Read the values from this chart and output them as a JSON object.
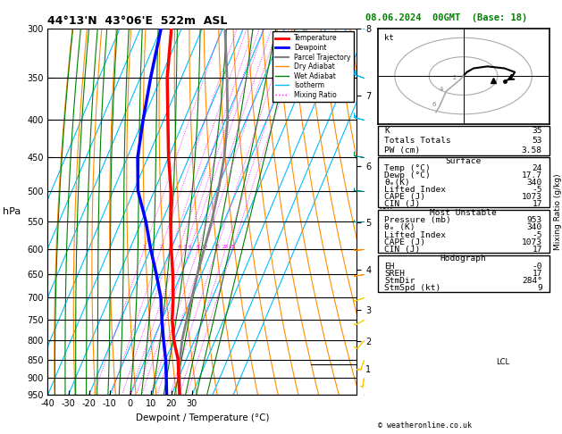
{
  "title_left": "44°13'N  43°06'E  522m  ASL",
  "title_right": "08.06.2024  00GMT  (Base: 18)",
  "xlabel": "Dewpoint / Temperature (°C)",
  "ylabel_left": "hPa",
  "pressure_ticks": [
    300,
    350,
    400,
    450,
    500,
    550,
    600,
    650,
    700,
    750,
    800,
    850,
    900,
    950
  ],
  "temp_ticks": [
    -40,
    -30,
    -20,
    -10,
    0,
    10,
    20,
    30
  ],
  "km_pressures": [
    870,
    795,
    715,
    625,
    535,
    443,
    350,
    280
  ],
  "km_labels": [
    "1",
    "2",
    "3",
    "4",
    "5",
    "6",
    "7",
    "8"
  ],
  "lcl_pressure": 858,
  "temperature_profile_p": [
    950,
    900,
    850,
    800,
    750,
    700,
    650,
    600,
    550,
    500,
    450,
    400,
    350,
    300
  ],
  "temperature_profile_t": [
    24,
    20,
    16,
    10,
    5,
    1,
    -4,
    -10,
    -16,
    -22,
    -30,
    -38,
    -47,
    -55
  ],
  "dewpoint_profile_p": [
    950,
    900,
    850,
    800,
    750,
    700,
    650,
    600,
    550,
    500,
    450,
    400,
    350,
    300
  ],
  "dewpoint_profile_t": [
    17.7,
    14,
    10,
    5,
    0,
    -5,
    -12,
    -20,
    -28,
    -38,
    -45,
    -50,
    -55,
    -60
  ],
  "parcel_profile_p": [
    950,
    900,
    860,
    800,
    750,
    700,
    650,
    600,
    550,
    500,
    450,
    400,
    350,
    300
  ],
  "parcel_profile_t": [
    24,
    20.5,
    17.5,
    14,
    12,
    10,
    8,
    6,
    4,
    1,
    -3,
    -9,
    -18,
    -29
  ],
  "bg_color": "#ffffff",
  "temp_color": "#ff0000",
  "dewpoint_color": "#0000ff",
  "parcel_color": "#808080",
  "dry_adiabat_color": "#ff8c00",
  "wet_adiabat_color": "#008000",
  "isotherm_color": "#00bfff",
  "mixing_ratio_color": "#ff00ff",
  "wind_barb_colors_blue": [
    [
      300,
      350,
      400
    ],
    "#00bfff"
  ],
  "wind_barb_colors_yellow": [
    [
      750,
      800,
      850,
      900,
      950
    ],
    "#ffcc00"
  ],
  "info_K": "35",
  "info_TT": "53",
  "info_PW": "3.58",
  "surf_temp": "24",
  "surf_dewp": "17.7",
  "surf_theta_e": "340",
  "surf_li": "-5",
  "surf_cape": "1073",
  "surf_cin": "17",
  "mu_pressure": "953",
  "mu_theta_e": "340",
  "mu_li": "-5",
  "mu_cape": "1073",
  "mu_cin": "17",
  "hodo_EH": "-0",
  "hodo_SREH": "17",
  "hodo_StmDir": "284°",
  "hodo_StmSpd": "9"
}
